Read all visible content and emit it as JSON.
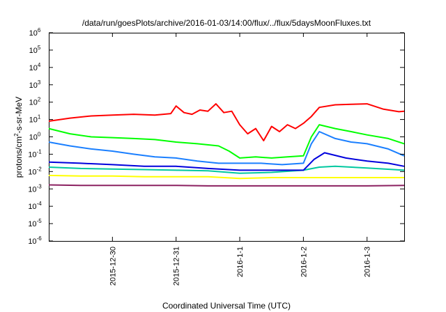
{
  "chart_data": {
    "type": "line",
    "title": "/data/run/goesPlots/archive/2016-01-03/14:00/flux/../flux/5daysMoonFluxes.txt",
    "xlabel": "Coordinated Universal Time (UTC)",
    "ylabel": {
      "prefix": "protons/cm",
      "superscript": "2",
      "suffix": "-s-sr-MeV"
    },
    "yscale": "log",
    "ylim": [
      1e-06,
      1000000.0
    ],
    "yticks": [
      {
        "value": 1e-06,
        "base": "10",
        "exp": "-6"
      },
      {
        "value": 1e-05,
        "base": "10",
        "exp": "-5"
      },
      {
        "value": 0.0001,
        "base": "10",
        "exp": "-4"
      },
      {
        "value": 0.001,
        "base": "10",
        "exp": "-3"
      },
      {
        "value": 0.01,
        "base": "10",
        "exp": "-2"
      },
      {
        "value": 0.1,
        "base": "10",
        "exp": "-1"
      },
      {
        "value": 1,
        "base": "10",
        "exp": "0"
      },
      {
        "value": 10,
        "base": "10",
        "exp": "1"
      },
      {
        "value": 100,
        "base": "10",
        "exp": "2"
      },
      {
        "value": 1000,
        "base": "10",
        "exp": "3"
      },
      {
        "value": 10000,
        "base": "10",
        "exp": "4"
      },
      {
        "value": 100000,
        "base": "10",
        "exp": "5"
      },
      {
        "value": 1000000,
        "base": "10",
        "exp": "6"
      }
    ],
    "xlim": [
      "2015-12-29T00:00",
      "2016-01-03T14:00"
    ],
    "xticks": [
      {
        "value": "2015-12-30T00:00",
        "label": "2015-12-30"
      },
      {
        "value": "2015-12-31T00:00",
        "label": "2015-12-31"
      },
      {
        "value": "2016-01-01T00:00",
        "label": "2016-1-1"
      },
      {
        "value": "2016-01-02T00:00",
        "label": "2016-1-2"
      },
      {
        "value": "2016-01-03T00:00",
        "label": "2016-1-3"
      }
    ],
    "grid": false,
    "legend": "none",
    "series": [
      {
        "color": "#ff0000",
        "x": [
          "2015-12-29T00:00",
          "2015-12-29T08:00",
          "2015-12-29T16:00",
          "2015-12-30T00:00",
          "2015-12-30T08:00",
          "2015-12-30T16:00",
          "2015-12-30T22:00",
          "2015-12-31T00:00",
          "2015-12-31T03:00",
          "2015-12-31T06:00",
          "2015-12-31T09:00",
          "2015-12-31T12:00",
          "2015-12-31T15:00",
          "2015-12-31T18:00",
          "2015-12-31T21:00",
          "2016-01-01T00:00",
          "2016-01-01T03:00",
          "2016-01-01T06:00",
          "2016-01-01T09:00",
          "2016-01-01T12:00",
          "2016-01-01T15:00",
          "2016-01-01T18:00",
          "2016-01-01T21:00",
          "2016-01-02T00:00",
          "2016-01-02T03:00",
          "2016-01-02T06:00",
          "2016-01-02T12:00",
          "2016-01-02T18:00",
          "2016-01-03T00:00",
          "2016-01-03T06:00",
          "2016-01-03T12:00",
          "2016-01-03T14:00"
        ],
        "y": [
          8,
          12,
          16,
          18,
          20,
          18,
          22,
          60,
          25,
          20,
          35,
          30,
          80,
          25,
          30,
          5,
          1.5,
          3,
          0.6,
          4,
          2,
          5,
          3,
          6,
          15,
          50,
          70,
          75,
          80,
          40,
          28,
          30
        ]
      },
      {
        "color": "#00ff00",
        "x": [
          "2015-12-29T00:00",
          "2015-12-29T08:00",
          "2015-12-29T16:00",
          "2015-12-30T00:00",
          "2015-12-30T08:00",
          "2015-12-30T16:00",
          "2015-12-31T00:00",
          "2015-12-31T08:00",
          "2015-12-31T16:00",
          "2015-12-31T20:00",
          "2016-01-01T00:00",
          "2016-01-01T06:00",
          "2016-01-01T12:00",
          "2016-01-01T18:00",
          "2016-01-02T00:00",
          "2016-01-02T03:00",
          "2016-01-02T06:00",
          "2016-01-02T12:00",
          "2016-01-02T18:00",
          "2016-01-03T00:00",
          "2016-01-03T08:00",
          "2016-01-03T14:00"
        ],
        "y": [
          3,
          1.5,
          1,
          0.9,
          0.8,
          0.7,
          0.5,
          0.4,
          0.3,
          0.15,
          0.06,
          0.07,
          0.06,
          0.07,
          0.08,
          1,
          5,
          3,
          2,
          1.3,
          0.8,
          0.4
        ]
      },
      {
        "color": "#1a7fff",
        "x": [
          "2015-12-29T00:00",
          "2015-12-29T08:00",
          "2015-12-29T16:00",
          "2015-12-30T00:00",
          "2015-12-30T08:00",
          "2015-12-30T16:00",
          "2015-12-31T00:00",
          "2015-12-31T08:00",
          "2015-12-31T16:00",
          "2016-01-01T00:00",
          "2016-01-01T08:00",
          "2016-01-01T16:00",
          "2016-01-02T00:00",
          "2016-01-02T03:00",
          "2016-01-02T06:00",
          "2016-01-02T12:00",
          "2016-01-02T18:00",
          "2016-01-03T00:00",
          "2016-01-03T08:00",
          "2016-01-03T14:00"
        ],
        "y": [
          0.5,
          0.3,
          0.2,
          0.15,
          0.1,
          0.07,
          0.06,
          0.04,
          0.03,
          0.03,
          0.03,
          0.025,
          0.03,
          0.4,
          2,
          0.8,
          0.5,
          0.4,
          0.2,
          0.08
        ]
      },
      {
        "color": "#0000dd",
        "x": [
          "2015-12-29T00:00",
          "2015-12-29T12:00",
          "2015-12-30T00:00",
          "2015-12-30T12:00",
          "2015-12-31T00:00",
          "2015-12-31T12:00",
          "2016-01-01T00:00",
          "2016-01-01T12:00",
          "2016-01-02T00:00",
          "2016-01-02T04:00",
          "2016-01-02T08:00",
          "2016-01-02T16:00",
          "2016-01-03T00:00",
          "2016-01-03T08:00",
          "2016-01-03T14:00"
        ],
        "y": [
          0.035,
          0.03,
          0.025,
          0.02,
          0.02,
          0.015,
          0.012,
          0.012,
          0.012,
          0.05,
          0.12,
          0.06,
          0.04,
          0.03,
          0.02
        ]
      },
      {
        "color": "#00c8a0",
        "x": [
          "2015-12-29T00:00",
          "2015-12-29T12:00",
          "2015-12-30T00:00",
          "2015-12-30T12:00",
          "2015-12-31T00:00",
          "2015-12-31T12:00",
          "2016-01-01T00:00",
          "2016-01-01T12:00",
          "2016-01-02T00:00",
          "2016-01-02T06:00",
          "2016-01-02T12:00",
          "2016-01-03T00:00",
          "2016-01-03T14:00"
        ],
        "y": [
          0.018,
          0.015,
          0.014,
          0.013,
          0.012,
          0.011,
          0.008,
          0.009,
          0.012,
          0.018,
          0.02,
          0.016,
          0.012
        ]
      },
      {
        "color": "#ffff00",
        "x": [
          "2015-12-29T00:00",
          "2015-12-29T12:00",
          "2015-12-30T00:00",
          "2015-12-30T12:00",
          "2015-12-31T00:00",
          "2015-12-31T12:00",
          "2016-01-01T00:00",
          "2016-01-01T12:00",
          "2016-01-02T00:00",
          "2016-01-02T12:00",
          "2016-01-03T00:00",
          "2016-01-03T14:00"
        ],
        "y": [
          0.006,
          0.0055,
          0.0055,
          0.005,
          0.005,
          0.005,
          0.004,
          0.0045,
          0.0045,
          0.0045,
          0.0045,
          0.0045
        ]
      },
      {
        "color": "#8b2060",
        "x": [
          "2015-12-29T00:00",
          "2015-12-29T12:00",
          "2015-12-30T00:00",
          "2015-12-30T12:00",
          "2015-12-31T00:00",
          "2015-12-31T12:00",
          "2016-01-01T00:00",
          "2016-01-01T12:00",
          "2016-01-02T00:00",
          "2016-01-02T12:00",
          "2016-01-03T00:00",
          "2016-01-03T14:00"
        ],
        "y": [
          0.0017,
          0.0016,
          0.0016,
          0.0016,
          0.0016,
          0.0015,
          0.0015,
          0.0015,
          0.0015,
          0.0015,
          0.0015,
          0.0016
        ]
      }
    ]
  }
}
